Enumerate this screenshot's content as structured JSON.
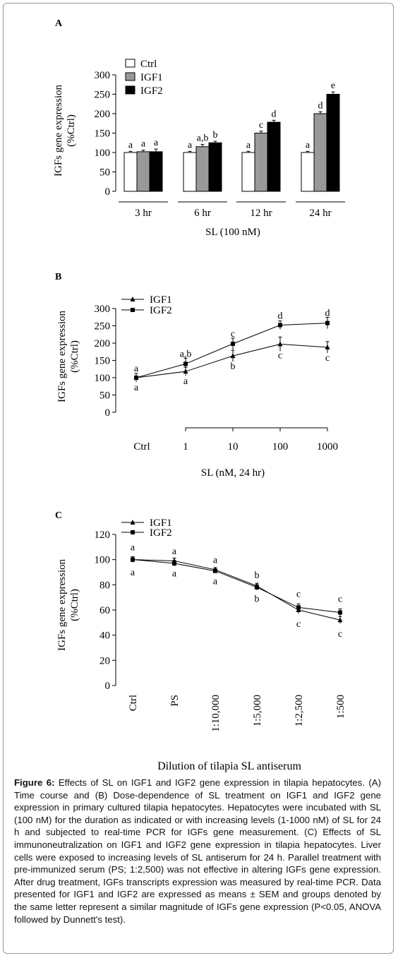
{
  "chart_data": [
    {
      "panel": "A",
      "type": "bar",
      "xlabel": "SL (100 nM)",
      "ylabel": "IGFs gene expression (%Ctrl)",
      "ylim": [
        0,
        300
      ],
      "yticks": [
        "0",
        "50",
        "100",
        "150",
        "200",
        "250",
        "300"
      ],
      "categories": [
        "3 hr",
        "6 hr",
        "12 hr",
        "24 hr"
      ],
      "legend_position": "top-left",
      "series": [
        {
          "name": "Ctrl",
          "color": "#ffffff",
          "values": [
            100,
            100,
            100,
            100
          ],
          "err": [
            3,
            3,
            3,
            3
          ],
          "letters": [
            "a",
            "a",
            "a",
            "a"
          ]
        },
        {
          "name": "IGF1",
          "color": "#999999",
          "values": [
            102,
            115,
            150,
            200
          ],
          "err": [
            4,
            6,
            5,
            5
          ],
          "letters": [
            "a",
            "a,b",
            "c",
            "d"
          ]
        },
        {
          "name": "IGF2",
          "color": "#000000",
          "values": [
            102,
            125,
            178,
            250
          ],
          "err": [
            7,
            4,
            5,
            6
          ],
          "letters": [
            "a",
            "b",
            "d",
            "e"
          ]
        }
      ]
    },
    {
      "panel": "B",
      "type": "line",
      "xlabel": "SL (nM, 24 hr)",
      "ylabel": "IGFs gene expression (%Ctrl)",
      "ylim": [
        0,
        300
      ],
      "yticks": [
        "0",
        "50",
        "100",
        "150",
        "200",
        "250",
        "300"
      ],
      "x": [
        "Ctrl",
        "1",
        "10",
        "100",
        "1000"
      ],
      "legend_position": "top-left",
      "series": [
        {
          "name": "IGF1",
          "marker": "triangle",
          "values": [
            100,
            118,
            163,
            197,
            188
          ],
          "err": [
            6,
            6,
            8,
            10,
            8
          ],
          "letters": [
            "a",
            "a",
            "b",
            "c",
            "c"
          ]
        },
        {
          "name": "IGF2",
          "marker": "square",
          "values": [
            100,
            140,
            198,
            252,
            258
          ],
          "err": [
            6,
            8,
            8,
            6,
            8
          ],
          "letters": [
            "a",
            "a,b",
            "c",
            "d",
            "d"
          ]
        }
      ]
    },
    {
      "panel": "C",
      "type": "line",
      "xlabel": "Dilution of tilapia SL antiserum",
      "ylabel": "IGFs gene expression (%Ctrl)",
      "ylim": [
        0,
        120
      ],
      "yticks": [
        "0",
        "20",
        "40",
        "60",
        "80",
        "100",
        "120"
      ],
      "x": [
        "Ctrl",
        "PS",
        "1:10,000",
        "1:5,000",
        "1:2,500",
        "1:500"
      ],
      "legend_position": "top-left",
      "series": [
        {
          "name": "IGF1",
          "marker": "triangle",
          "values": [
            100,
            99,
            92,
            79,
            60,
            52
          ],
          "err": [
            4,
            4,
            3,
            4,
            5,
            5
          ],
          "letters": [
            "a",
            "a",
            "a",
            "b",
            "c",
            "c"
          ]
        },
        {
          "name": "IGF2",
          "marker": "square",
          "values": [
            100,
            97,
            91,
            78,
            62,
            58
          ],
          "err": [
            4,
            4,
            3,
            4,
            5,
            5
          ],
          "letters": [
            "a",
            "a",
            "a",
            "b",
            "c",
            "c"
          ]
        }
      ]
    }
  ],
  "caption": {
    "label": "Figure 6:",
    "text": "Effects of SL on IGF1 and IGF2 gene expression in tilapia hepatocytes. (A) Time course and (B) Dose-dependence of SL treatment on IGF1 and IGF2 gene expression in primary cultured tilapia hepatocytes. Hepatocytes were incubated with SL (100 nM) for the duration as indicated or with increasing levels (1-1000 nM) of SL for 24 h and subjected to real-time PCR for IGFs gene measurement. (C) Effects of SL immunoneutralization on IGF1 and IGF2 gene expression in tilapia hepatocytes. Liver cells were exposed to increasing levels of SL antiserum for 24 h. Parallel treatment with pre-immunized serum (PS; 1:2,500) was not effective in altering IGFs gene expression. After drug treatment, IGFs transcripts expression was measured by real-time PCR. Data presented for IGF1 and IGF2 are expressed as means ± SEM and groups denoted by the same letter represent a similar magnitude of IGFs gene expression (P<0.05, ANOVA followed by Dunnett's test)."
  }
}
